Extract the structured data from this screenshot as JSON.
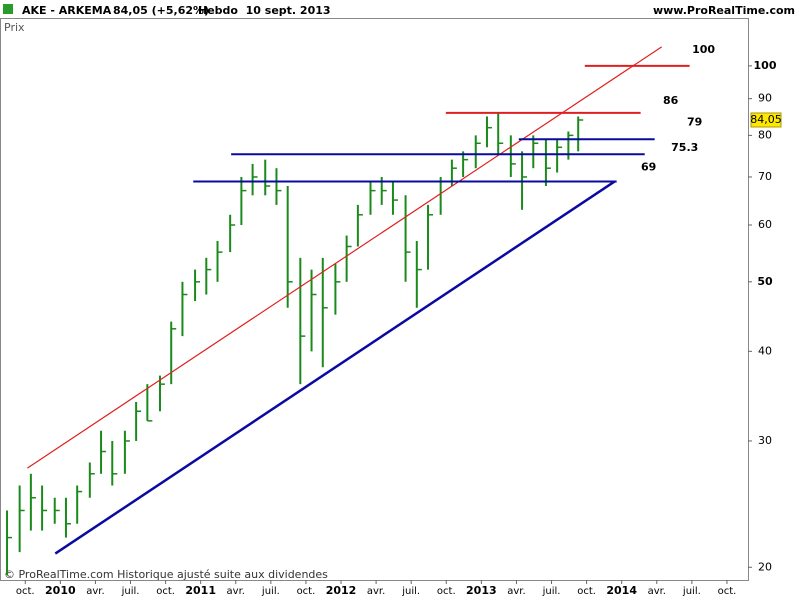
{
  "chart_data": {
    "type": "ohlc",
    "title": "AKE - ARKEMA",
    "last_change": "84,05 (+5,62%)",
    "period": "Hebdo  10 sept. 2013",
    "source": "www.ProRealTime.com",
    "panel_label": "Prix",
    "footer": "© ProRealTime.com Historique ajusté suite aux dividendes",
    "log_scale": true,
    "color": "#1a8a1a",
    "x": [
      2009.62,
      2009.71,
      2009.79,
      2009.87,
      2009.96,
      2010.04,
      2010.12,
      2010.21,
      2010.29,
      2010.37,
      2010.46,
      2010.54,
      2010.62,
      2010.71,
      2010.79,
      2010.87,
      2010.96,
      2011.04,
      2011.12,
      2011.21,
      2011.29,
      2011.37,
      2011.46,
      2011.54,
      2011.62,
      2011.71,
      2011.79,
      2011.87,
      2011.96,
      2012.04,
      2012.12,
      2012.21,
      2012.29,
      2012.37,
      2012.46,
      2012.54,
      2012.62,
      2012.71,
      2012.79,
      2012.87,
      2012.96,
      2013.04,
      2013.12,
      2013.21,
      2013.29,
      2013.37,
      2013.46,
      2013.54,
      2013.62,
      2013.69
    ],
    "high": [
      24,
      26,
      27,
      26,
      25,
      25,
      26,
      28,
      31,
      30,
      31,
      34,
      36,
      37,
      44,
      50,
      52,
      54,
      57,
      62,
      70,
      73,
      74,
      72,
      68,
      54,
      52,
      54,
      53,
      58,
      64,
      69,
      70,
      69,
      66,
      57,
      64,
      70,
      74,
      76,
      80,
      85,
      86,
      80,
      76,
      80,
      79,
      79,
      81,
      85
    ],
    "low": [
      19.5,
      21,
      22.5,
      22.5,
      23,
      22,
      23,
      25,
      27,
      26,
      27,
      30,
      32,
      33,
      36,
      42,
      47,
      48,
      50,
      55,
      60,
      66,
      66,
      64,
      46,
      36,
      40,
      38,
      45,
      50,
      56,
      62,
      64,
      62,
      50,
      46,
      52,
      62,
      68,
      70,
      72,
      77,
      75,
      70,
      63,
      72,
      68,
      71,
      74,
      76
    ],
    "close": [
      22,
      24,
      25,
      24,
      24,
      23,
      25.5,
      27,
      29,
      27,
      30,
      33,
      32,
      36,
      43,
      48,
      50,
      52,
      55,
      60,
      67,
      70,
      68,
      67,
      50,
      42,
      48,
      46,
      50,
      56,
      62,
      67,
      67,
      65,
      55,
      52,
      62,
      69,
      72,
      74,
      78,
      82,
      78,
      73,
      70,
      78,
      72,
      77,
      80,
      84.05
    ],
    "last_price": {
      "value": 84.05,
      "label": "84,05"
    },
    "xlim": [
      2009.57,
      2014.9
    ],
    "ylim": [
      19.2,
      116.6
    ],
    "yticks": [
      20,
      30,
      40,
      50,
      60,
      70,
      80,
      90,
      100
    ],
    "xticks": [
      {
        "value": 2009.75,
        "label": "oct."
      },
      2010,
      {
        "value": 2010.25,
        "label": "avr."
      },
      {
        "value": 2010.5,
        "label": "juil."
      },
      {
        "value": 2010.75,
        "label": "oct."
      },
      2011,
      {
        "value": 2011.25,
        "label": "avr."
      },
      {
        "value": 2011.5,
        "label": "juil."
      },
      {
        "value": 2011.75,
        "label": "oct."
      },
      2012,
      {
        "value": 2012.25,
        "label": "avr."
      },
      {
        "value": 2012.5,
        "label": "juil."
      },
      {
        "value": 2012.75,
        "label": "oct."
      },
      2013,
      {
        "value": 2013.25,
        "label": "avr."
      },
      {
        "value": 2013.5,
        "label": "juil."
      },
      {
        "value": 2013.75,
        "label": "oct."
      },
      2014,
      {
        "value": 2014.25,
        "label": "avr."
      },
      {
        "value": 2014.5,
        "label": "juil."
      },
      {
        "value": 2014.75,
        "label": "oct."
      }
    ],
    "trendlines": [
      {
        "color": "#e02020",
        "x": [
          2009.765,
          2014.285
        ],
        "y": [
          27.5,
          106.3
        ]
      },
      {
        "color": "#0a0aa0",
        "x": [
          2009.964,
          2013.95
        ],
        "y": [
          20.9,
          69
        ]
      }
    ],
    "levels": [
      {
        "value": 100,
        "color": "#e02020",
        "x": [
          2013.737,
          2014.484
        ]
      },
      {
        "value": 86,
        "color": "#e02020",
        "x": [
          2012.747,
          2014.135
        ]
      },
      {
        "value": 79,
        "color": "#0a0aa0",
        "x": [
          2013.267,
          2014.235
        ]
      },
      {
        "value": 75.3,
        "color": "#0a0aa0",
        "x": [
          2011.217,
          2014.164
        ]
      },
      {
        "value": 69,
        "color": "#0a0aa0",
        "x": [
          2010.947,
          2013.964
        ]
      }
    ]
  }
}
